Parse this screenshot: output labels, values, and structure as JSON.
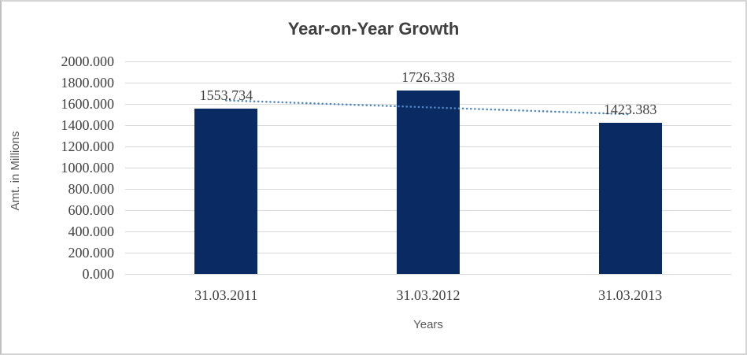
{
  "chart_data": {
    "type": "bar",
    "title": "Year-on-Year Growth",
    "xlabel": "Years",
    "ylabel": "Amt. in Millions",
    "categories": [
      "31.03.2011",
      "31.03.2012",
      "31.03.2013"
    ],
    "values": [
      1553.734,
      1726.338,
      1423.383
    ],
    "value_labels": [
      "1553.734",
      "1726.338",
      "1423.383"
    ],
    "ylim": [
      0,
      2000
    ],
    "y_tick_step": 200,
    "y_tick_labels": [
      "0.000",
      "200.000",
      "400.000",
      "600.000",
      "800.000",
      "1000.000",
      "1200.000",
      "1400.000",
      "1600.000",
      "1800.000",
      "2000.000"
    ],
    "grid": true,
    "legend": "none",
    "bar_color": "#0a2a63",
    "trendline": {
      "type": "linear",
      "style": "dotted",
      "color": "#4f86c6"
    }
  }
}
